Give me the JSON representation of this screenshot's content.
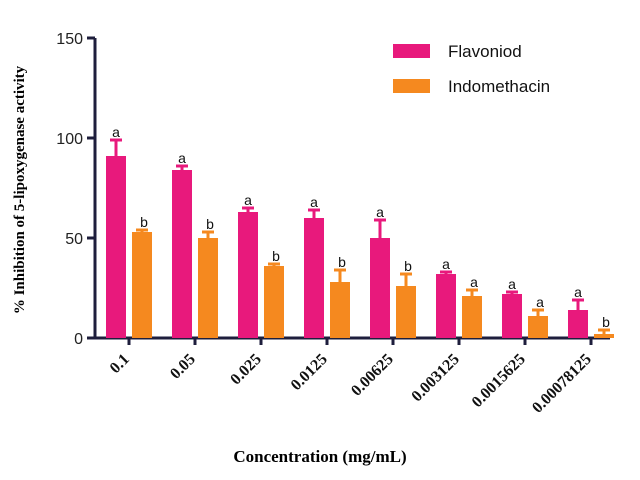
{
  "chart_data": {
    "type": "bar",
    "x_label": "Concentration (mg/mL)",
    "y_label": "% Inhibition of  5-lipoxygenase activity",
    "categories": [
      "0.1",
      "0.05",
      "0.025",
      "0.0125",
      "0.00625",
      "0.003125",
      "0.0015625",
      "0.00078125"
    ],
    "series": [
      {
        "name": "Flavoniod",
        "color": "#e8197c",
        "values": [
          91,
          84,
          63,
          60,
          50,
          32,
          22,
          14
        ],
        "errors": [
          8,
          2,
          2,
          4,
          9,
          1,
          1,
          5
        ],
        "labels": [
          "a",
          "a",
          "a",
          "a",
          "a",
          "a",
          "a",
          "a"
        ]
      },
      {
        "name": "Indomethacin",
        "color": "#f5891f",
        "values": [
          53,
          50,
          36,
          28,
          26,
          21,
          11,
          2
        ],
        "errors": [
          1,
          3,
          1,
          6,
          6,
          3,
          3,
          2
        ],
        "labels": [
          "b",
          "b",
          "b",
          "b",
          "b",
          "a",
          "a",
          "b"
        ]
      }
    ],
    "ylim": [
      0,
      150
    ],
    "yticks": [
      0,
      50,
      100,
      150
    ],
    "legend": "top-right"
  }
}
